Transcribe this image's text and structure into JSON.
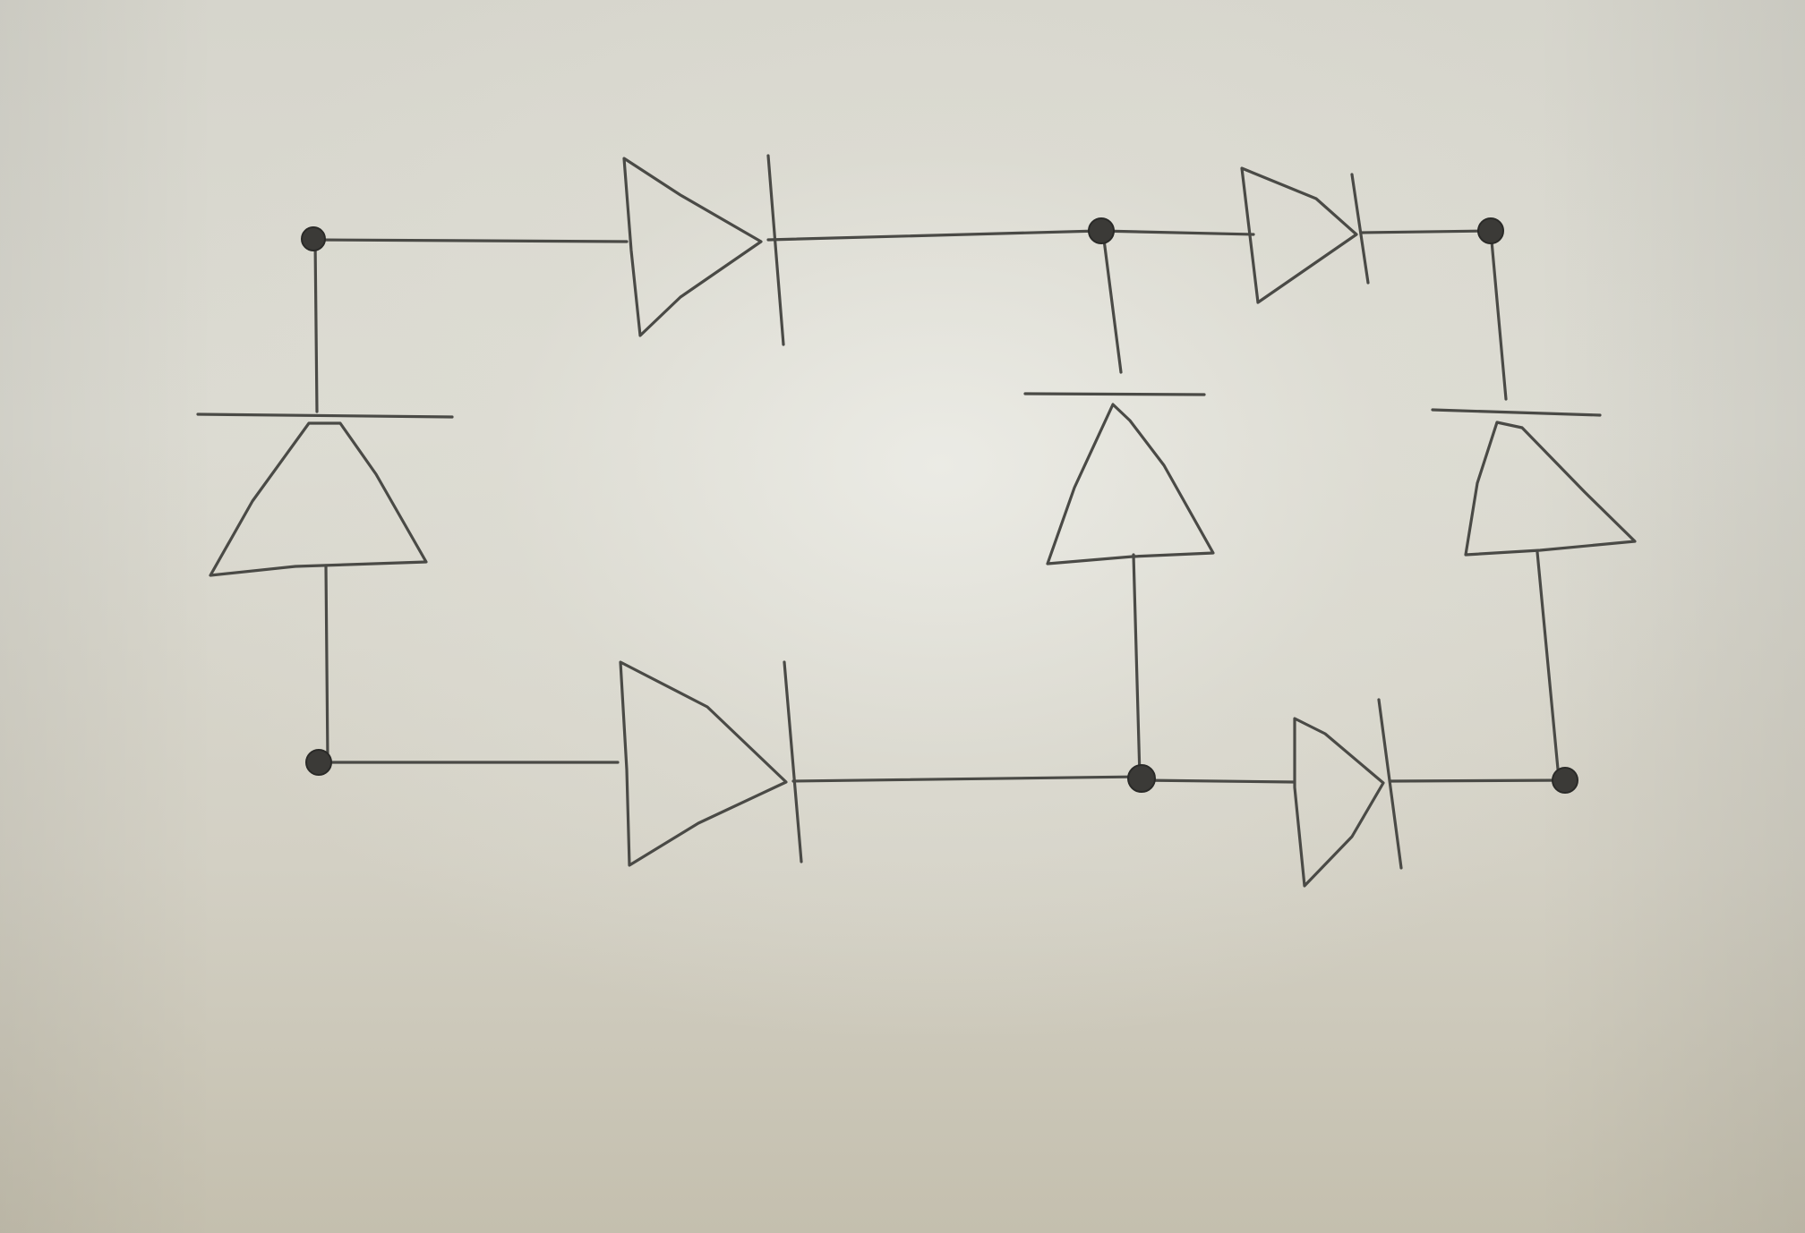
{
  "diagram": {
    "type": "hand-drawn circuit",
    "components": {
      "diode_count": 7,
      "node_count": 6
    },
    "colors": {
      "paper": "#dcdbd2",
      "pencil": "#4a4a46"
    },
    "icons": [
      "diode-symbol",
      "junction-node"
    ]
  }
}
